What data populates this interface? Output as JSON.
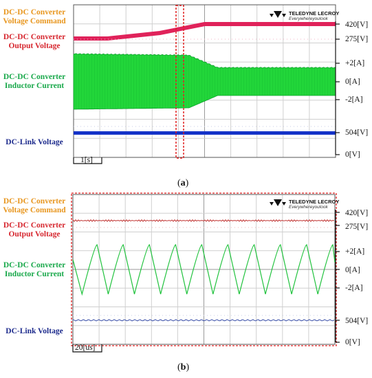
{
  "chart_data": [
    {
      "type": "line",
      "panel_label": "a",
      "time_scale_label": "1[s]",
      "logo": {
        "brand": "TELEDYNE LECROY",
        "tagline": "Everywhereyoulook"
      },
      "signals": [
        {
          "name": "DC-DC Converter Voltage Command",
          "color": "#e8961e"
        },
        {
          "name": "DC-DC Converter Output Voltage",
          "color": "#d6262e"
        },
        {
          "name": "DC-DC Converter Inductor Current",
          "color": "#18a84a"
        },
        {
          "name": "DC-Link Voltage",
          "color": "#1c2a8c"
        }
      ],
      "right_axis_labels": [
        "420[V]",
        "275[V]",
        "+2[A]",
        "0[A]",
        "-2[A]",
        "504[V]",
        "0[V]"
      ],
      "series": [
        {
          "name": "output_voltage",
          "x": [
            0,
            1.3,
            3.3,
            5.0,
            10
          ],
          "values": [
            275,
            275,
            330,
            420,
            420
          ]
        },
        {
          "name": "inductor_current_amplitude",
          "x": [
            0,
            4.4,
            5.5,
            10
          ],
          "values": [
            2,
            1.9,
            1.0,
            1.0
          ]
        },
        {
          "name": "dc_link",
          "x": [
            0,
            10
          ],
          "values": [
            504,
            504
          ]
        }
      ],
      "highlight": "dashed red box around transition"
    },
    {
      "type": "line",
      "panel_label": "b",
      "time_scale_label": "20[us]",
      "logo": {
        "brand": "TELEDYNE LECROY",
        "tagline": "Everywhereyoulook"
      },
      "signals": [
        {
          "name": "DC-DC Converter Voltage Command",
          "color": "#e8961e"
        },
        {
          "name": "DC-DC Converter Output Voltage",
          "color": "#d6262e"
        },
        {
          "name": "DC-DC Converter Inductor Current",
          "color": "#18a84a"
        },
        {
          "name": "DC-Link Voltage",
          "color": "#1c2a8c"
        }
      ],
      "right_axis_labels": [
        "420[V]",
        "275[V]",
        "+2[A]",
        "0[A]",
        "-2[A]",
        "504[V]",
        "0[V]"
      ],
      "series": [
        {
          "name": "inductor_current",
          "waveform": "triangle",
          "cycles": 10,
          "amplitude": 2
        }
      ]
    }
  ]
}
